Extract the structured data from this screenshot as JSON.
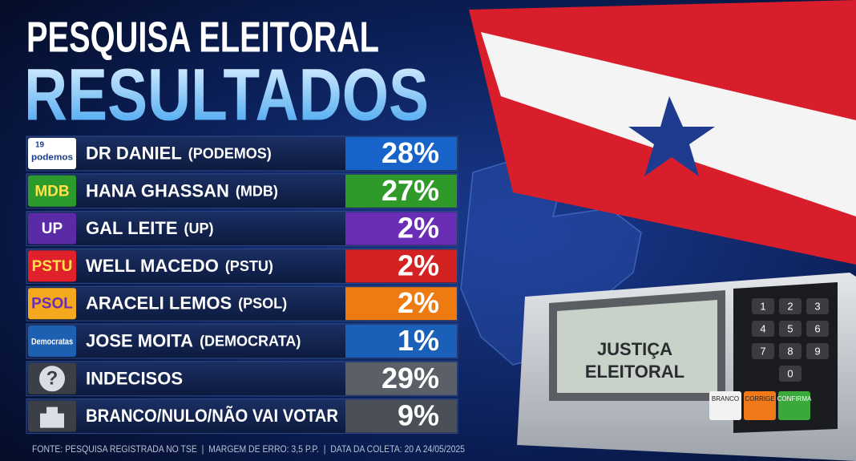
{
  "header": {
    "title": "PESQUISA ELEITORAL",
    "subtitle": "RESULTADOS"
  },
  "rows": [
    {
      "logo": "podemos",
      "logo_number": "19",
      "name": "DR DANIEL",
      "party": "(PODEMOS)",
      "value": "28%"
    },
    {
      "logo": "MDB",
      "name": "HANA GHASSAN",
      "party": "(MDB)",
      "value": "27%"
    },
    {
      "logo": "UP",
      "name": "GAL LEITE",
      "party": "(UP)",
      "value": "2%"
    },
    {
      "logo": "PSTU",
      "name": "WELL MACEDO",
      "party": "(PSTU)",
      "value": "2%"
    },
    {
      "logo": "PSOL",
      "name": "ARACELI LEMOS",
      "party": "(PSOL)",
      "value": "2%"
    },
    {
      "logo": "Democratas",
      "name": "JOSE MOITA",
      "party": "(DEMOCRATA)",
      "value": "1%"
    },
    {
      "logo": "?",
      "name": "INDECISOS",
      "value": "29%"
    },
    {
      "name": "BRANCO/NULO/NÃO VAI VOTAR",
      "value": "9%"
    }
  ],
  "footer": "FONTE: PESQUISA REGISTRADA NO TSE  |  MARGEM DE ERRO: 3,5 P.P.  |  DATA DA COLETA: 20 A 24/05/2025",
  "ballot_box": {
    "screen": [
      "JUSTIÇA",
      "ELEITORAL"
    ],
    "keys": [
      "1",
      "2",
      "3",
      "4",
      "5",
      "6",
      "7",
      "8",
      "9",
      "0"
    ],
    "buttons": [
      "BRANCO",
      "CORRIGE",
      "CONFIRMA"
    ]
  }
}
